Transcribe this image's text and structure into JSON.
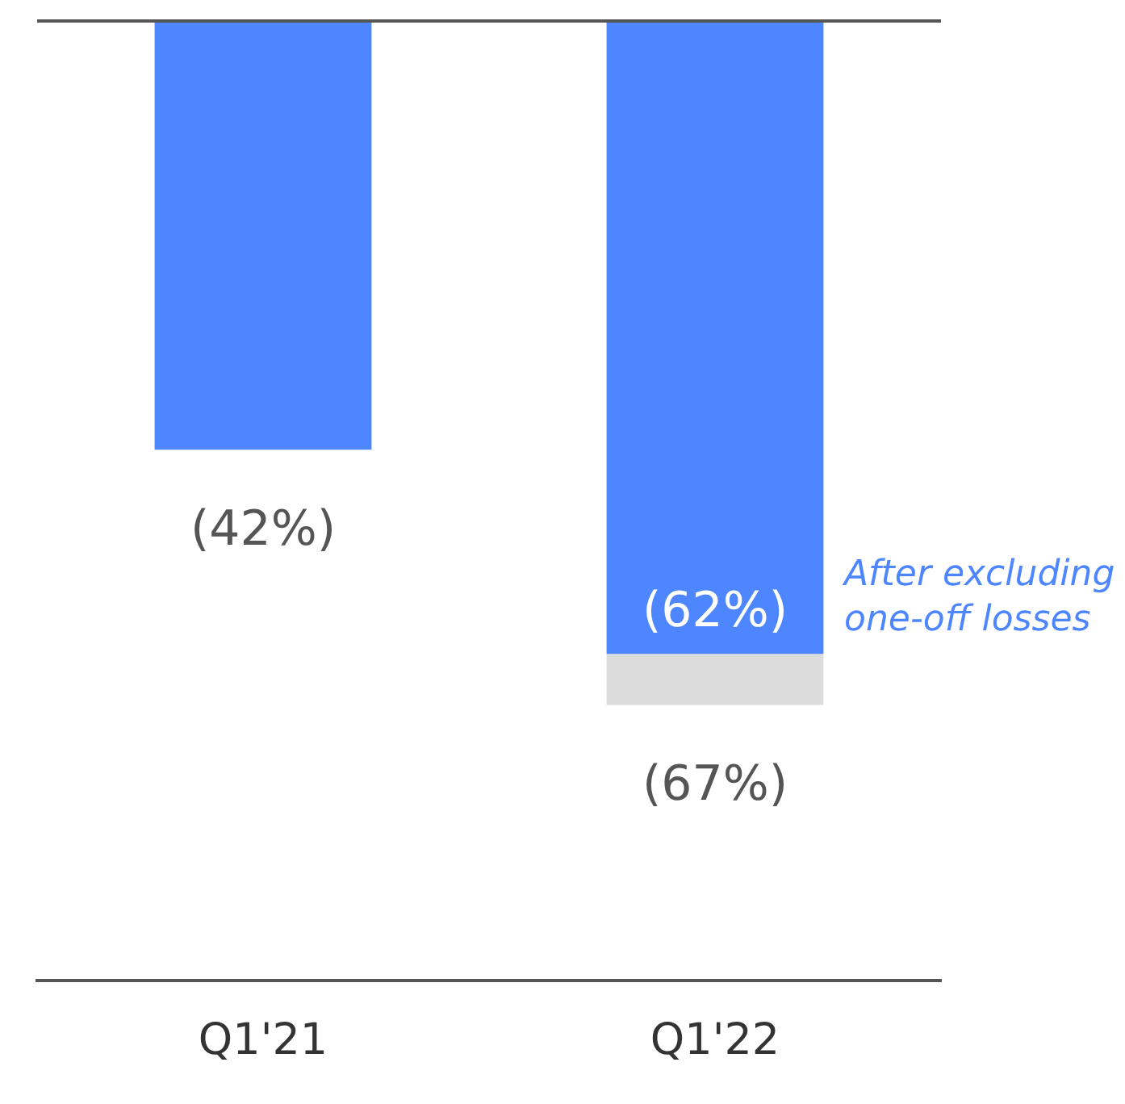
{
  "chart_data": {
    "type": "bar",
    "categories": [
      "Q1'21",
      "Q1'22"
    ],
    "stacked": true,
    "totals": [
      null,
      "(67%)"
    ],
    "series": [
      {
        "color": "#4d86ff",
        "values": [
          -42,
          -62
        ],
        "value_labels": [
          "(42%)",
          "(62%)"
        ]
      },
      {
        "color": "#dcdcdc",
        "values": [
          null,
          -5
        ]
      }
    ],
    "ylim": [
      -94,
      0
    ],
    "tick_labels": "x",
    "grid": false,
    "legend": false,
    "annotations": [
      "After excluding one-off losses"
    ]
  }
}
